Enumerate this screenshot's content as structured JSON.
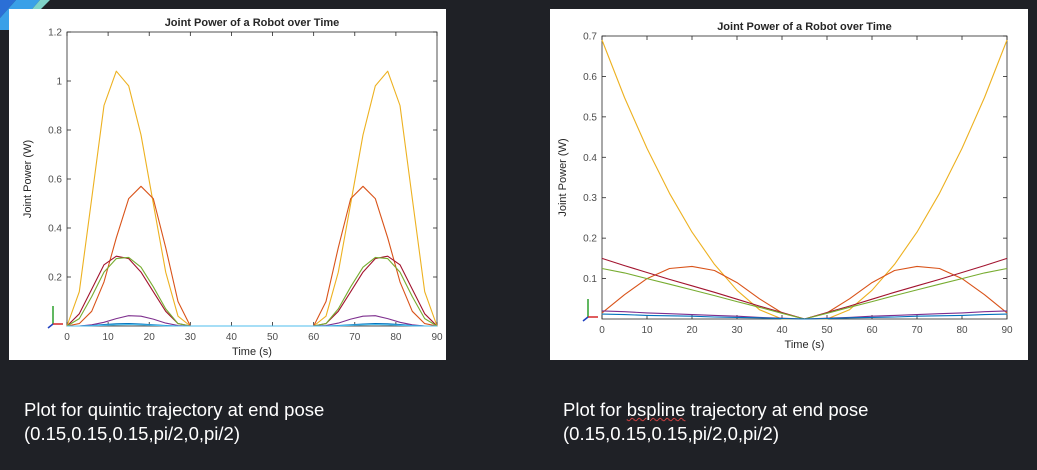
{
  "slide": {
    "caption_left": {
      "line1": "Plot for quintic trajectory at end pose",
      "line2": "(0.15,0.15,0.15,pi/2,0,pi/2)"
    },
    "caption_right": {
      "line1_prefix": "Plot for ",
      "line1_word": "bspline",
      "line1_suffix": " trajectory at end pose",
      "line2": "(0.15,0.15,0.15,pi/2,0,pi/2)"
    }
  },
  "chart_data": [
    {
      "type": "line",
      "title": "Joint Power of a Robot over Time",
      "xlabel": "Time (s)",
      "ylabel": "Joint Power (W)",
      "xlim": [
        0,
        90
      ],
      "ylim": [
        0,
        1.2
      ],
      "xticks": [
        0,
        10,
        20,
        30,
        40,
        50,
        60,
        70,
        80,
        90
      ],
      "xtick_labels": [
        "0",
        "10",
        "20",
        "30",
        "40",
        "50",
        "60",
        "70",
        "80",
        "90"
      ],
      "yticks": [
        0.2,
        0.4,
        0.6,
        0.8,
        1,
        1.2
      ],
      "ytick_labels": [
        "0.2",
        "0.4",
        "0.6",
        "0.8",
        "1",
        "1.2"
      ],
      "grid": false,
      "series": [
        {
          "color": "#edb120",
          "x": [
            0,
            3,
            6,
            9,
            12,
            15,
            18,
            21,
            24,
            27,
            30,
            45,
            60,
            63,
            66,
            69,
            72,
            75,
            78,
            81,
            84,
            87,
            90
          ],
          "values": [
            0.0,
            0.14,
            0.52,
            0.9,
            1.04,
            0.98,
            0.78,
            0.5,
            0.22,
            0.04,
            0.0,
            0.0,
            0.0,
            0.04,
            0.22,
            0.5,
            0.78,
            0.98,
            1.04,
            0.9,
            0.52,
            0.14,
            0.0
          ]
        },
        {
          "color": "#d95319",
          "x": [
            0,
            3,
            6,
            9,
            12,
            15,
            18,
            21,
            24,
            27,
            30,
            45,
            60,
            63,
            66,
            69,
            72,
            75,
            78,
            81,
            84,
            87,
            90
          ],
          "values": [
            0.0,
            0.01,
            0.06,
            0.18,
            0.36,
            0.52,
            0.57,
            0.52,
            0.32,
            0.1,
            0.0,
            0.0,
            0.0,
            0.1,
            0.32,
            0.52,
            0.57,
            0.52,
            0.36,
            0.18,
            0.06,
            0.01,
            0.0
          ]
        },
        {
          "color": "#a2142f",
          "x": [
            0,
            3,
            6,
            9,
            12,
            15,
            18,
            21,
            24,
            27,
            30,
            45,
            60,
            63,
            66,
            69,
            72,
            75,
            78,
            81,
            84,
            87,
            90
          ],
          "values": [
            0.0,
            0.05,
            0.15,
            0.25,
            0.285,
            0.275,
            0.22,
            0.14,
            0.06,
            0.01,
            0.0,
            0.0,
            0.0,
            0.01,
            0.06,
            0.14,
            0.22,
            0.275,
            0.285,
            0.25,
            0.15,
            0.05,
            0.0
          ]
        },
        {
          "color": "#77ac30",
          "x": [
            0,
            3,
            6,
            9,
            12,
            15,
            18,
            21,
            24,
            27,
            30,
            45,
            60,
            63,
            66,
            69,
            72,
            75,
            78,
            81,
            84,
            87,
            90
          ],
          "values": [
            0.0,
            0.03,
            0.12,
            0.22,
            0.275,
            0.28,
            0.24,
            0.16,
            0.07,
            0.01,
            0.0,
            0.0,
            0.0,
            0.01,
            0.07,
            0.16,
            0.24,
            0.28,
            0.275,
            0.22,
            0.12,
            0.03,
            0.0
          ]
        },
        {
          "color": "#7e2f8e",
          "x": [
            0,
            3,
            6,
            9,
            12,
            15,
            18,
            21,
            24,
            27,
            30,
            45,
            60,
            63,
            66,
            69,
            72,
            75,
            78,
            81,
            84,
            87,
            90
          ],
          "values": [
            0.0,
            0.0,
            0.005,
            0.015,
            0.03,
            0.042,
            0.04,
            0.028,
            0.012,
            0.002,
            0.0,
            0.0,
            0.0,
            0.002,
            0.012,
            0.028,
            0.04,
            0.042,
            0.03,
            0.015,
            0.005,
            0.0,
            0.0
          ]
        },
        {
          "color": "#0072bd",
          "x": [
            0,
            3,
            6,
            9,
            12,
            15,
            18,
            21,
            24,
            27,
            30,
            45,
            60,
            63,
            66,
            69,
            72,
            75,
            78,
            81,
            84,
            87,
            90
          ],
          "values": [
            0.0,
            0.0,
            0.002,
            0.006,
            0.009,
            0.01,
            0.008,
            0.005,
            0.002,
            0.0,
            0.0,
            0.0,
            0.0,
            0.0,
            0.002,
            0.005,
            0.008,
            0.01,
            0.009,
            0.006,
            0.002,
            0.0,
            0.0
          ]
        },
        {
          "color": "#4dbeee",
          "x": [
            0,
            3,
            6,
            9,
            12,
            15,
            18,
            21,
            24,
            27,
            30,
            45,
            60,
            63,
            66,
            69,
            72,
            75,
            78,
            81,
            84,
            87,
            90
          ],
          "values": [
            0.0,
            0.0,
            0.001,
            0.003,
            0.005,
            0.006,
            0.005,
            0.003,
            0.001,
            0.0,
            0.0,
            0.0,
            0.0,
            0.0,
            0.001,
            0.003,
            0.005,
            0.006,
            0.005,
            0.003,
            0.001,
            0.0,
            0.0
          ]
        }
      ]
    },
    {
      "type": "line",
      "title": "Joint Power of a Robot over Time",
      "xlabel": "Time (s)",
      "ylabel": "Joint Power (W)",
      "xlim": [
        0,
        90
      ],
      "ylim": [
        0,
        0.7
      ],
      "xticks": [
        0,
        10,
        20,
        30,
        40,
        50,
        60,
        70,
        80,
        90
      ],
      "xtick_labels": [
        "0",
        "10",
        "20",
        "30",
        "40",
        "50",
        "60",
        "70",
        "80",
        "90"
      ],
      "yticks": [
        0.1,
        0.2,
        0.3,
        0.4,
        0.5,
        0.6,
        0.7
      ],
      "ytick_labels": [
        "0.1",
        "0.2",
        "0.3",
        "0.4",
        "0.5",
        "0.6",
        "0.7"
      ],
      "grid": false,
      "series": [
        {
          "color": "#edb120",
          "x": [
            0,
            5,
            10,
            15,
            20,
            25,
            30,
            35,
            40,
            45,
            50,
            55,
            60,
            65,
            70,
            75,
            80,
            85,
            90
          ],
          "values": [
            0.69,
            0.548,
            0.422,
            0.311,
            0.215,
            0.135,
            0.071,
            0.023,
            0.0,
            0.0,
            0.0,
            0.023,
            0.071,
            0.135,
            0.215,
            0.311,
            0.422,
            0.548,
            0.69
          ]
        },
        {
          "color": "#d95319",
          "x": [
            0,
            5,
            10,
            15,
            20,
            25,
            30,
            35,
            40,
            45,
            50,
            55,
            60,
            65,
            70,
            75,
            80,
            85,
            90
          ],
          "values": [
            0.015,
            0.06,
            0.1,
            0.125,
            0.13,
            0.12,
            0.09,
            0.05,
            0.015,
            0.0,
            0.015,
            0.05,
            0.09,
            0.12,
            0.13,
            0.125,
            0.1,
            0.06,
            0.015
          ]
        },
        {
          "color": "#a2142f",
          "x": [
            0,
            5,
            10,
            15,
            20,
            25,
            30,
            35,
            40,
            45,
            50,
            55,
            60,
            65,
            70,
            75,
            80,
            85,
            90
          ],
          "values": [
            0.15,
            0.132,
            0.115,
            0.098,
            0.082,
            0.066,
            0.049,
            0.032,
            0.016,
            0.0,
            0.016,
            0.032,
            0.049,
            0.066,
            0.082,
            0.098,
            0.115,
            0.132,
            0.15
          ]
        },
        {
          "color": "#77ac30",
          "x": [
            0,
            5,
            10,
            15,
            20,
            25,
            30,
            35,
            40,
            45,
            50,
            55,
            60,
            65,
            70,
            75,
            80,
            85,
            90
          ],
          "values": [
            0.125,
            0.114,
            0.1,
            0.086,
            0.072,
            0.058,
            0.043,
            0.029,
            0.014,
            0.0,
            0.014,
            0.029,
            0.043,
            0.058,
            0.072,
            0.086,
            0.1,
            0.114,
            0.125
          ]
        },
        {
          "color": "#7e2f8e",
          "x": [
            0,
            5,
            10,
            15,
            20,
            25,
            30,
            35,
            40,
            45,
            50,
            55,
            60,
            65,
            70,
            75,
            80,
            85,
            90
          ],
          "values": [
            0.02,
            0.018,
            0.015,
            0.013,
            0.011,
            0.009,
            0.007,
            0.004,
            0.002,
            0.0,
            0.002,
            0.004,
            0.007,
            0.009,
            0.011,
            0.013,
            0.015,
            0.018,
            0.02
          ]
        },
        {
          "color": "#0072bd",
          "x": [
            0,
            5,
            10,
            15,
            20,
            25,
            30,
            35,
            40,
            45,
            50,
            55,
            60,
            65,
            70,
            75,
            80,
            85,
            90
          ],
          "values": [
            0.012,
            0.011,
            0.009,
            0.008,
            0.007,
            0.005,
            0.004,
            0.003,
            0.001,
            0.0,
            0.001,
            0.003,
            0.004,
            0.005,
            0.007,
            0.008,
            0.009,
            0.011,
            0.012
          ]
        }
      ]
    }
  ]
}
